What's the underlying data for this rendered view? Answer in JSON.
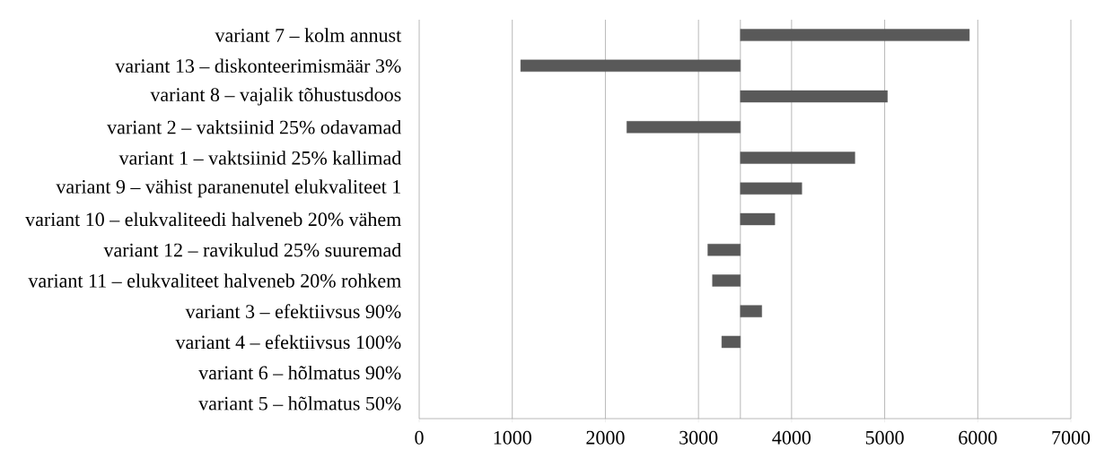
{
  "chart_data": {
    "type": "bar",
    "orientation": "horizontal",
    "categories": [
      "variant 7 – kolm annust",
      "variant 13 – diskonteerimismäär 3%",
      "variant 8 – vajalik tõhustusdoos",
      "variant 2 – vaktsiinid 25% odavamad",
      "variant 1 – vaktsiinid 25% kallimad",
      "variant 9 – vähist paranenutel elukvaliteet 1",
      "variant 10 – elukvaliteedi halveneb 20% vähem",
      "variant 12 – ravikulud 25% suuremad",
      "variant 11 – elukvaliteet halveneb 20% rohkem",
      "variant 3 – efektiivsus 90%",
      "variant 4 – efektiivsus 100%",
      "variant 6 – hõlmatus 90%",
      "variant 5 – hõlmatus 50%"
    ],
    "values": [
      2460,
      -2360,
      1580,
      -1220,
      1230,
      660,
      370,
      -350,
      -300,
      230,
      -200,
      null,
      null
    ],
    "base": [
      3450,
      3450,
      3450,
      3450,
      3450,
      3450,
      3450,
      3450,
      3450,
      3450,
      3450,
      null,
      null
    ],
    "color": "#595959",
    "xlim": [
      0,
      7000
    ],
    "xticks": [
      0,
      1000,
      2000,
      3000,
      4000,
      5000,
      6000,
      7000
    ],
    "ref_lines": [
      {
        "axis": "x",
        "value": 3450,
        "color": "#a6a6a6"
      }
    ],
    "grid": "x"
  }
}
